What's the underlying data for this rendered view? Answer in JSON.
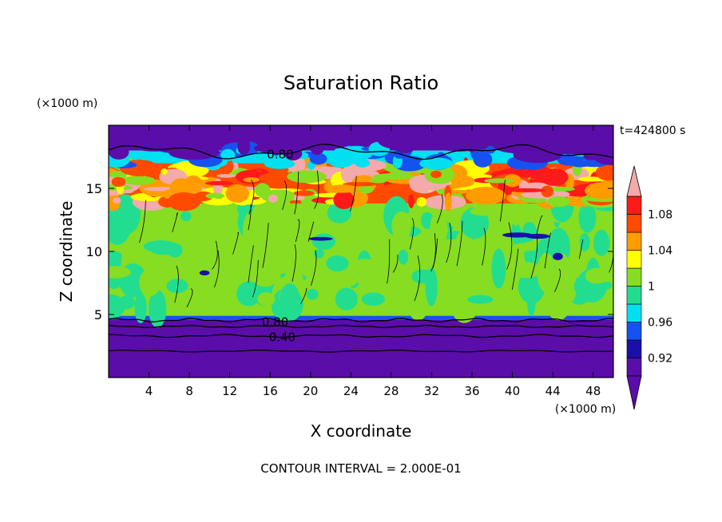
{
  "chart_data": {
    "type": "heatmap",
    "title": "Saturation Ratio",
    "xlabel": "X coordinate",
    "ylabel": "Z coordinate",
    "x_unit": "(×1000 m)",
    "y_unit": "(×1000 m)",
    "time_label": "t=424800 s",
    "footer": "CONTOUR INTERVAL = 2.000E-01",
    "xlim": [
      0,
      50
    ],
    "ylim": [
      0,
      20
    ],
    "x_ticks": [
      4,
      8,
      12,
      16,
      20,
      24,
      28,
      32,
      36,
      40,
      44,
      48
    ],
    "y_ticks": [
      5,
      10,
      15
    ],
    "contour_labels": [
      {
        "text": "0.80",
        "x": 17,
        "z": 17.7
      },
      {
        "text": "0.80",
        "x": 16.5,
        "z": 4.4
      },
      {
        "text": "0.40",
        "x": 17.2,
        "z": 3.2
      }
    ],
    "colorbar": {
      "levels": [
        0.9,
        0.92,
        0.94,
        0.96,
        0.98,
        1.0,
        1.02,
        1.04,
        1.06,
        1.08,
        1.1
      ],
      "tick_labels": [
        "0.92",
        "0.96",
        "1",
        "1.04",
        "1.08"
      ],
      "colors": [
        "#5a0da8",
        "#1a10a8",
        "#1652f0",
        "#00e0f0",
        "#22dd90",
        "#86dd22",
        "#ffff00",
        "#ff9c00",
        "#ff4a00",
        "#ff1a1a",
        "#f4aaaa"
      ],
      "extend": "both"
    },
    "bands": [
      {
        "z0": 0,
        "z1": 4.6,
        "value": 0.4
      },
      {
        "z0": 4.6,
        "z1": 4.9,
        "value": 0.95
      },
      {
        "z0": 4.9,
        "z1": 13.8,
        "value": 1.0
      },
      {
        "z0": 13.8,
        "z1": 17.0,
        "value": 1.07
      },
      {
        "z0": 17.0,
        "z1": 18.0,
        "value": 0.96
      },
      {
        "z0": 18.0,
        "z1": 20,
        "value": 0.6
      }
    ]
  }
}
